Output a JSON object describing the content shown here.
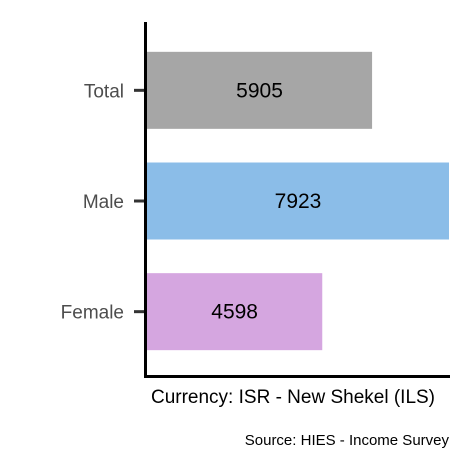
{
  "chart_data": {
    "type": "bar",
    "orientation": "horizontal",
    "categories": [
      "Total",
      "Male",
      "Female"
    ],
    "values": [
      5905,
      7923,
      4598
    ],
    "colors": [
      "#a6a6a6",
      "#8bbde8",
      "#d5a6e0"
    ],
    "data_labels": [
      "5905",
      "7923",
      "4598"
    ],
    "xlabel": "Currency: ISR - New Shekel (ILS)",
    "ylabel": "",
    "xlim": [
      0,
      7923
    ],
    "grid": false,
    "legend": "none",
    "caption": "Source:  HIES - Income Survey"
  }
}
